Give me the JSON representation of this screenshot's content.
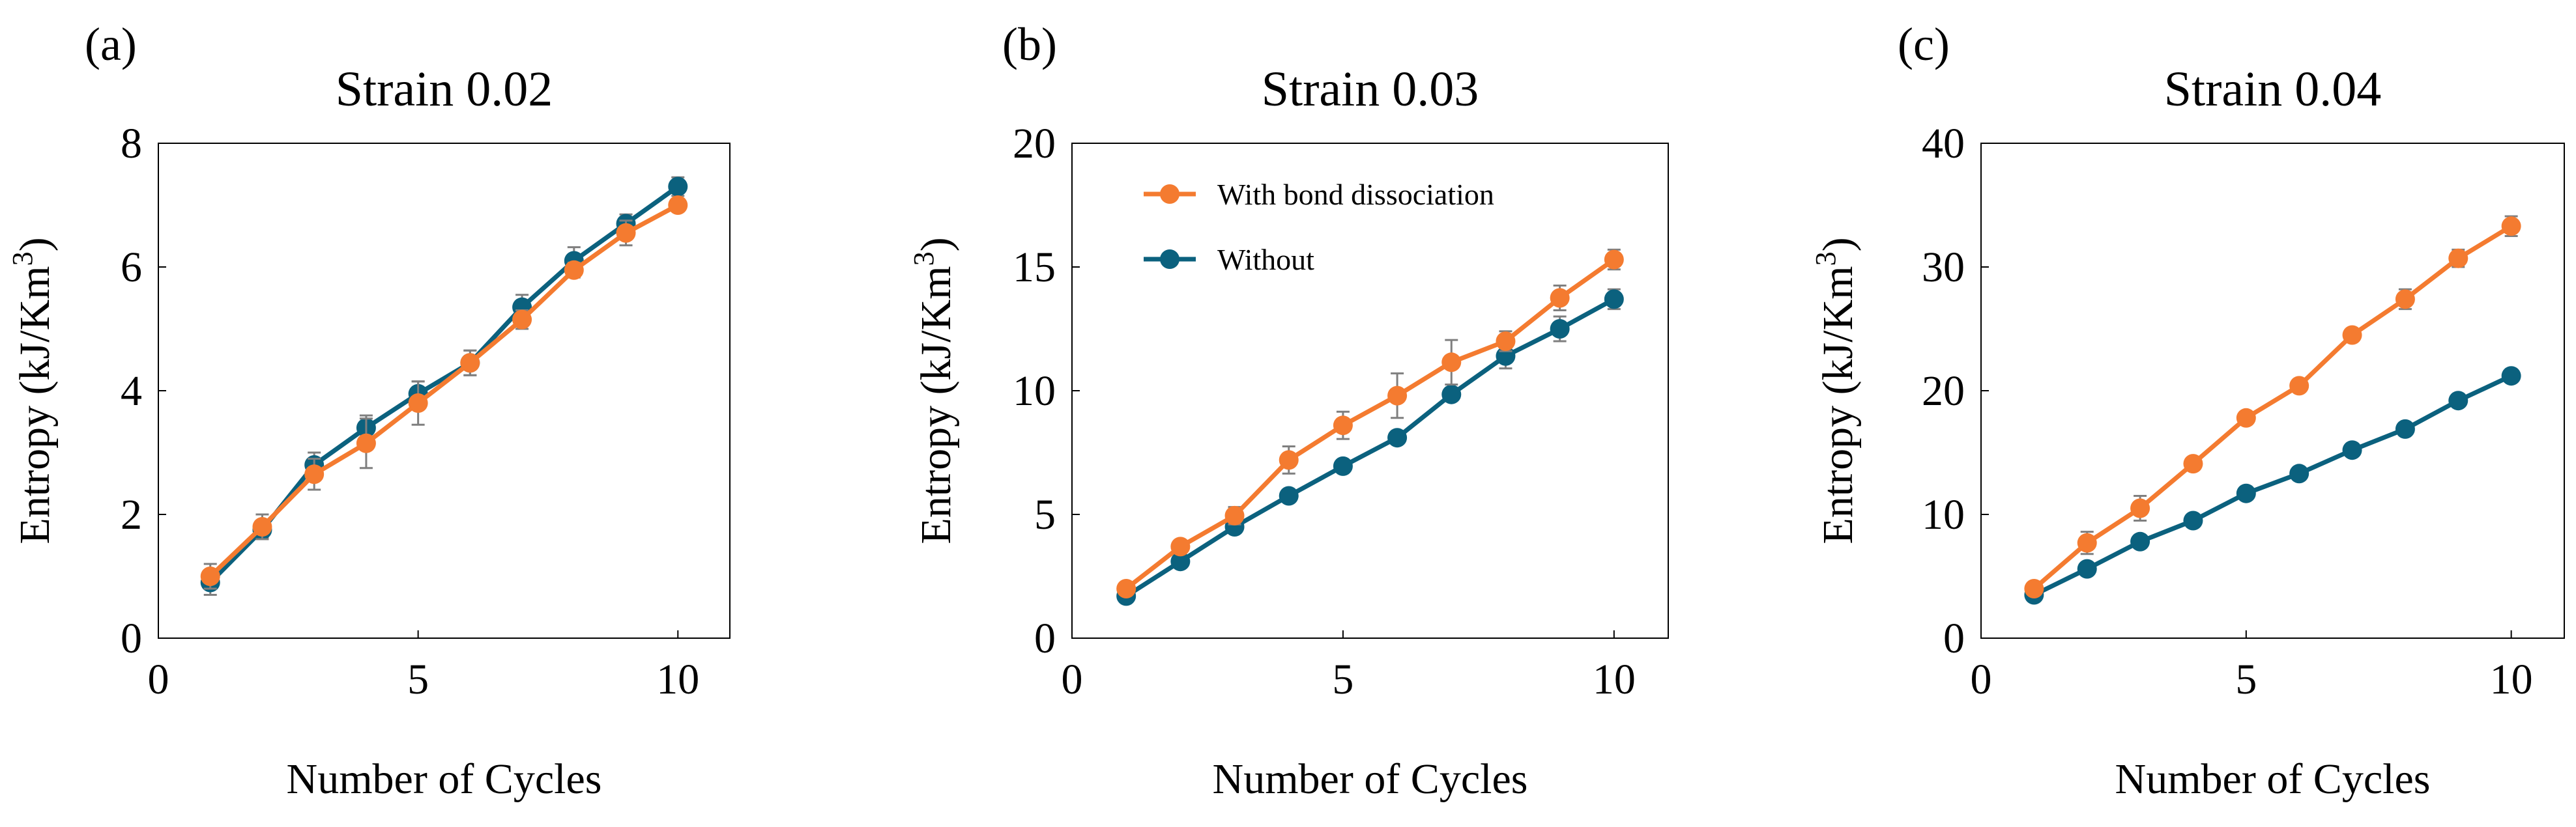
{
  "colors": {
    "with": "#f47b30",
    "without": "#0b617e",
    "errorbar": "#7f7f7f",
    "axis": "#000000"
  },
  "legend": {
    "with_label": "With bond dissociation",
    "without_label": "Without"
  },
  "chart_data": [
    {
      "type": "line",
      "panel_label": "(a)",
      "title": "Strain 0.02",
      "xlabel": "Number of Cycles",
      "ylabel": "Entropy (kJ/Km",
      "ylabel_sup": "3",
      "ylabel_close": ")",
      "xlim": [
        0,
        11
      ],
      "ylim": [
        0,
        8
      ],
      "xticks": [
        0,
        5,
        10
      ],
      "yticks": [
        0,
        2,
        4,
        6,
        8
      ],
      "x": [
        1,
        2,
        3,
        4,
        5,
        6,
        7,
        8,
        9,
        10
      ],
      "series": [
        {
          "name": "Without",
          "values": [
            0.9,
            1.75,
            2.8,
            3.4,
            3.95,
            4.45,
            5.35,
            6.1,
            6.7,
            7.3
          ],
          "err": [
            0.2,
            0.12,
            0.2,
            0.2,
            0.2,
            0.2,
            0.2,
            0.22,
            0.15,
            0.15
          ]
        },
        {
          "name": "With bond dissociation",
          "values": [
            1.0,
            1.8,
            2.65,
            3.15,
            3.8,
            4.45,
            5.15,
            5.95,
            6.55,
            7.0
          ],
          "err": [
            0.2,
            0.2,
            0.25,
            0.4,
            0.35,
            0.2,
            0.15,
            0.12,
            0.2,
            0.1
          ]
        }
      ]
    },
    {
      "type": "line",
      "panel_label": "(b)",
      "title": "Strain 0.03",
      "xlabel": "Number of Cycles",
      "ylabel": "Entropy (kJ/Km",
      "ylabel_sup": "3",
      "ylabel_close": ")",
      "xlim": [
        0,
        11
      ],
      "ylim": [
        0,
        20
      ],
      "xticks": [
        0,
        5,
        10
      ],
      "yticks": [
        0,
        5,
        10,
        15,
        20
      ],
      "legend": true,
      "x": [
        1,
        2,
        3,
        4,
        5,
        6,
        7,
        8,
        9,
        10
      ],
      "series": [
        {
          "name": "Without",
          "values": [
            1.7,
            3.1,
            4.5,
            5.75,
            6.95,
            8.1,
            9.85,
            11.4,
            12.5,
            13.7
          ],
          "err": [
            0.15,
            0.15,
            0.15,
            0.15,
            0.15,
            0.15,
            0.2,
            0.5,
            0.5,
            0.4
          ]
        },
        {
          "name": "With bond dissociation",
          "values": [
            2.0,
            3.7,
            4.95,
            7.2,
            8.6,
            9.8,
            11.15,
            12.0,
            13.75,
            15.3
          ],
          "err": [
            0.25,
            0.2,
            0.35,
            0.55,
            0.55,
            0.9,
            0.9,
            0.4,
            0.5,
            0.4
          ]
        }
      ]
    },
    {
      "type": "line",
      "panel_label": "(c)",
      "title": "Strain 0.04",
      "xlabel": "Number of Cycles",
      "ylabel": "Entropy (kJ/Km",
      "ylabel_sup": "3",
      "ylabel_close": ")",
      "xlim": [
        0,
        11
      ],
      "ylim": [
        0,
        40
      ],
      "xticks": [
        0,
        5,
        10
      ],
      "yticks": [
        0,
        10,
        20,
        30,
        40
      ],
      "x": [
        1,
        2,
        3,
        4,
        5,
        6,
        7,
        8,
        9,
        10
      ],
      "series": [
        {
          "name": "Without",
          "values": [
            3.5,
            5.6,
            7.8,
            9.5,
            11.7,
            13.3,
            15.2,
            16.9,
            19.2,
            21.2
          ],
          "err": [
            0.3,
            0.3,
            0.3,
            0.3,
            0.3,
            0.3,
            0.3,
            0.3,
            0.3,
            0.3
          ]
        },
        {
          "name": "With bond dissociation",
          "values": [
            4.0,
            7.7,
            10.5,
            14.1,
            17.8,
            20.4,
            24.5,
            27.4,
            30.7,
            33.3
          ],
          "err": [
            0.5,
            0.9,
            1.0,
            0.5,
            0.4,
            0.4,
            0.4,
            0.8,
            0.7,
            0.8
          ]
        }
      ]
    }
  ]
}
